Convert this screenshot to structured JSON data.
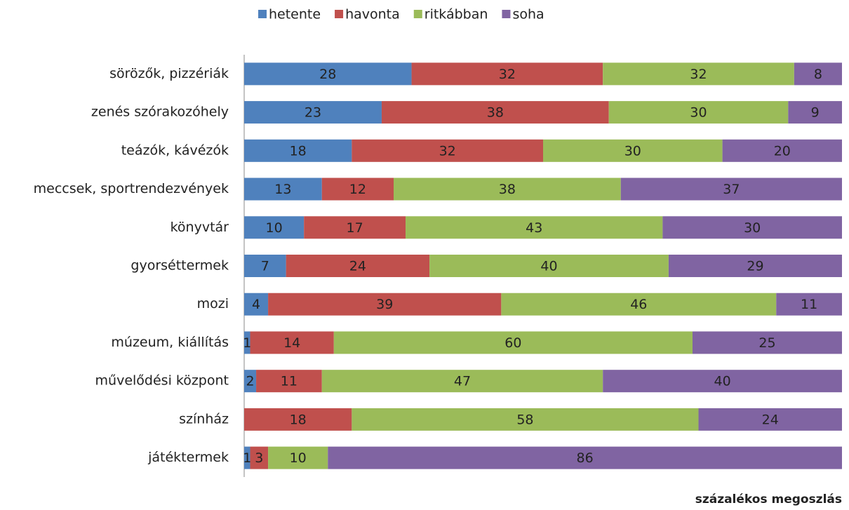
{
  "chart_data": {
    "type": "stacked_bar_horizontal",
    "x_label": "százalékos megoszlás",
    "categories": [
      "sörözők, pizzériák",
      "zenés szórakozóhely",
      "teázók, kávézók",
      "meccsek, sportrendezvények",
      "könyvtár",
      "gyorséttermek",
      "mozi",
      "múzeum, kiállítás",
      "művelődési központ",
      "színház",
      "játéktermek"
    ],
    "xlim": [
      0,
      100
    ],
    "legend": "top",
    "series": [
      {
        "name": "hetente",
        "color": "#4f81bd",
        "values": [
          28,
          23,
          18,
          13,
          10,
          7,
          4,
          1,
          2,
          null,
          1
        ]
      },
      {
        "name": "havonta",
        "color": "#c0504d",
        "values": [
          32,
          38,
          32,
          12,
          17,
          24,
          39,
          14,
          11,
          18,
          3
        ]
      },
      {
        "name": "ritkábban",
        "color": "#9bbb59",
        "values": [
          32,
          30,
          30,
          38,
          43,
          40,
          46,
          60,
          47,
          58,
          10
        ]
      },
      {
        "name": "soha",
        "color": "#8064a2",
        "values": [
          8,
          9,
          20,
          37,
          30,
          29,
          11,
          25,
          40,
          24,
          86
        ]
      }
    ]
  }
}
